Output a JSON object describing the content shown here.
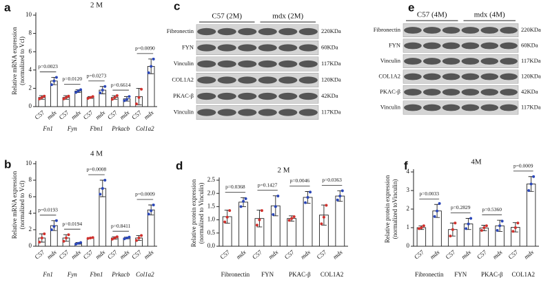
{
  "chart_data": [
    {
      "type": "bar",
      "letter": "a",
      "title": "2 M",
      "ylabel": [
        "Relative mRNA expression",
        "(normalized to Vcl)"
      ],
      "ylim": [
        0,
        10
      ],
      "yticks": [
        0,
        2,
        4,
        6,
        8,
        10
      ],
      "groups": [
        "Fn1",
        "Fyn",
        "Fbn1",
        "Prkacb",
        "Col1a2"
      ],
      "categories": [
        "C57",
        "mdx",
        "C57",
        "mdx",
        "C57",
        "mdx",
        "C57",
        "mdx",
        "C57",
        "mdx"
      ],
      "values": [
        1.0,
        2.8,
        1.0,
        1.7,
        1.0,
        1.8,
        1.0,
        0.85,
        1.1,
        4.4
      ],
      "errors": [
        0.2,
        0.4,
        0.2,
        0.15,
        0.1,
        0.4,
        0.2,
        0.25,
        0.9,
        0.8
      ],
      "points": [
        [
          0.85,
          1.0,
          1.15
        ],
        [
          2.4,
          2.8,
          3.2
        ],
        [
          0.85,
          1.0,
          1.15
        ],
        [
          1.55,
          1.7,
          1.85
        ],
        [
          0.9,
          1.0,
          1.1
        ],
        [
          1.5,
          1.8,
          2.2
        ],
        [
          0.8,
          1.0,
          1.2
        ],
        [
          0.65,
          0.8,
          1.1
        ],
        [
          0.3,
          1.0,
          1.9
        ],
        [
          3.7,
          4.4,
          5.2
        ]
      ],
      "pvalues": [
        "p=0.0023",
        "p=0.0120",
        "p=0.0273",
        "p=0.6614",
        "p=0.0090"
      ],
      "point_colors": [
        "#d0312d",
        "#2b47b8"
      ]
    },
    {
      "type": "bar",
      "letter": "b",
      "title": "4 M",
      "ylabel": [
        "Relative mRNA expression",
        "(normalized to Vcl)"
      ],
      "ylim": [
        0,
        10
      ],
      "yticks": [
        0,
        2,
        4,
        6,
        8,
        10
      ],
      "groups": [
        "Fn1",
        "Fyn",
        "Fbn1",
        "Prkacb",
        "Col1a2"
      ],
      "categories": [
        "C57",
        "mdx",
        "C57",
        "mdx",
        "C57",
        "mdx",
        "C57",
        "mdx",
        "C57",
        "mdx"
      ],
      "values": [
        1.0,
        2.5,
        1.0,
        0.35,
        1.0,
        7.0,
        1.0,
        1.0,
        1.0,
        4.4
      ],
      "errors": [
        0.5,
        0.6,
        0.4,
        0.1,
        0.05,
        1.0,
        0.15,
        0.1,
        0.3,
        0.6
      ],
      "points": [
        [
          0.5,
          1.0,
          1.5
        ],
        [
          2.0,
          2.4,
          3.1
        ],
        [
          0.6,
          1.0,
          1.4
        ],
        [
          0.25,
          0.35,
          0.45
        ],
        [
          0.95,
          1.0,
          1.05
        ],
        [
          6.3,
          7.0,
          8.0
        ],
        [
          0.85,
          1.0,
          1.15
        ],
        [
          0.9,
          1.0,
          1.1
        ],
        [
          0.7,
          1.0,
          1.3
        ],
        [
          3.9,
          4.3,
          5.0
        ]
      ],
      "pvalues": [
        "p=0.0193",
        "p=0.0194",
        "p=0.0008",
        "p=0.8411",
        "p=0.0009"
      ],
      "point_colors": [
        "#d0312d",
        "#2b47b8"
      ]
    },
    {
      "type": "bar",
      "letter": "d",
      "title": "2 M",
      "ylabel": [
        "Relative protein expression",
        "(normalized to Vinculin)"
      ],
      "ylim": [
        0,
        2.5
      ],
      "yticks": [
        {
          "value": 0,
          "label": "0.0"
        },
        {
          "value": 0.5,
          "label": "0.5"
        },
        {
          "value": 1,
          "label": "1.0"
        },
        {
          "value": 1.5,
          "label": "1.5"
        },
        {
          "value": 2,
          "label": "2.0"
        },
        {
          "value": 2.5,
          "label": "2.5"
        }
      ],
      "groups": [
        "Fibronectin",
        "FYN",
        "PKAC-β",
        "COL1A2"
      ],
      "categories": [
        "C57",
        "mdx",
        "C57",
        "mdx",
        "C57",
        "mdx",
        "C57",
        "mdx"
      ],
      "values": [
        1.12,
        1.67,
        1.05,
        1.53,
        1.05,
        1.85,
        1.18,
        1.9
      ],
      "errors": [
        0.25,
        0.17,
        0.32,
        0.38,
        0.1,
        0.22,
        0.38,
        0.2
      ],
      "points": [
        [
          0.92,
          1.1,
          1.35
        ],
        [
          1.5,
          1.7,
          1.8
        ],
        [
          0.8,
          1.0,
          1.35
        ],
        [
          1.2,
          1.5,
          1.9
        ],
        [
          0.98,
          1.05,
          1.12
        ],
        [
          1.65,
          1.85,
          2.05
        ],
        [
          0.85,
          1.1,
          1.55
        ],
        [
          1.75,
          1.9,
          2.1
        ]
      ],
      "pvalues": [
        "p=0.0368",
        "p=0.1427",
        "p=0.0046",
        "p=0.0363"
      ],
      "point_colors": [
        "#d0312d",
        "#2b47b8"
      ]
    },
    {
      "type": "bar",
      "letter": "f",
      "title": "4M",
      "ylabel": [
        "Relative protein expression",
        "(normalized toVinculin)"
      ],
      "ylim": [
        0,
        4
      ],
      "yticks": [
        0,
        1,
        2,
        3,
        4
      ],
      "groups": [
        "Fibronectin",
        "FYN",
        "PKAC-β",
        "COL1A2"
      ],
      "categories": [
        "C57",
        "mdx",
        "C57",
        "mdx",
        "C57",
        "mdx",
        "C57",
        "mdx"
      ],
      "values": [
        1.0,
        1.9,
        0.9,
        1.2,
        0.98,
        1.1,
        1.02,
        3.35
      ],
      "errors": [
        0.1,
        0.35,
        0.35,
        0.3,
        0.15,
        0.3,
        0.25,
        0.4
      ],
      "points": [
        [
          0.95,
          1.0,
          1.1
        ],
        [
          1.6,
          1.9,
          2.3
        ],
        [
          0.55,
          0.9,
          1.25
        ],
        [
          0.95,
          1.2,
          1.5
        ],
        [
          0.85,
          1.0,
          1.1
        ],
        [
          0.85,
          1.1,
          1.35
        ],
        [
          0.8,
          1.0,
          1.25
        ],
        [
          3.0,
          3.35,
          3.75
        ]
      ],
      "pvalues": [
        "p=0.0033",
        "p=0.2829",
        "p=0.5360",
        "p=0.0009"
      ],
      "point_colors": [
        "#d0312d",
        "#2b47b8"
      ]
    }
  ],
  "blots": [
    {
      "letter": "c",
      "groups": [
        "C57 (2M)",
        "mdx (2M)"
      ],
      "rows": [
        {
          "label": "Fibronectin",
          "size": "220KDa"
        },
        {
          "label": "FYN",
          "size": "60KDa"
        },
        {
          "label": "Vinculin",
          "size": "117KDa"
        },
        {
          "label": "COL1A2",
          "size": "120KDa"
        },
        {
          "label": "PKAC-β",
          "size": "42KDa"
        },
        {
          "label": "Vinculin",
          "size": "117KDa"
        }
      ]
    },
    {
      "letter": "e",
      "groups": [
        "C57 (4M)",
        "mdx (4M)"
      ],
      "rows": [
        {
          "label": "Fibronectin",
          "size": "220KDa"
        },
        {
          "label": "FYN",
          "size": "60KDa"
        },
        {
          "label": "Vinculin",
          "size": "117KDa"
        },
        {
          "label": "COL1A2",
          "size": "120KDa"
        },
        {
          "label": "PKAC-β",
          "size": "42KDa"
        },
        {
          "label": "Vinculin",
          "size": "117KDa"
        }
      ]
    }
  ]
}
